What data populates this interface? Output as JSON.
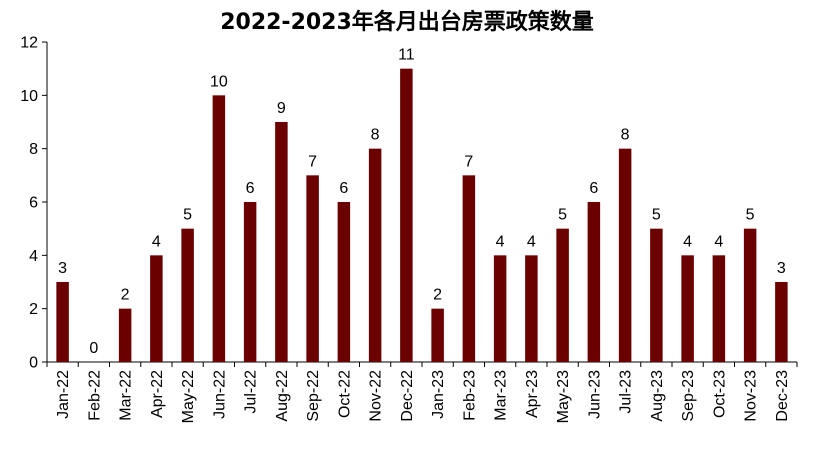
{
  "chart_data": {
    "type": "bar",
    "title": "2022-2023年各月出台房票政策数量",
    "xlabel": "",
    "ylabel": "",
    "ylim": [
      0,
      12
    ],
    "yticks": [
      0,
      2,
      4,
      6,
      8,
      10,
      12
    ],
    "grid": false,
    "legend": "none",
    "bar_color": "#6B0000",
    "categories": [
      "Jan-22",
      "Feb-22",
      "Mar-22",
      "Apr-22",
      "May-22",
      "Jun-22",
      "Jul-22",
      "Aug-22",
      "Sep-22",
      "Oct-22",
      "Nov-22",
      "Dec-22",
      "Jan-23",
      "Feb-23",
      "Mar-23",
      "Apr-23",
      "May-23",
      "Jun-23",
      "Jul-23",
      "Aug-23",
      "Sep-23",
      "Oct-23",
      "Nov-23",
      "Dec-23"
    ],
    "values": [
      3,
      0,
      2,
      4,
      5,
      10,
      6,
      9,
      7,
      6,
      8,
      11,
      2,
      7,
      4,
      4,
      5,
      6,
      8,
      5,
      4,
      4,
      5,
      3
    ]
  }
}
